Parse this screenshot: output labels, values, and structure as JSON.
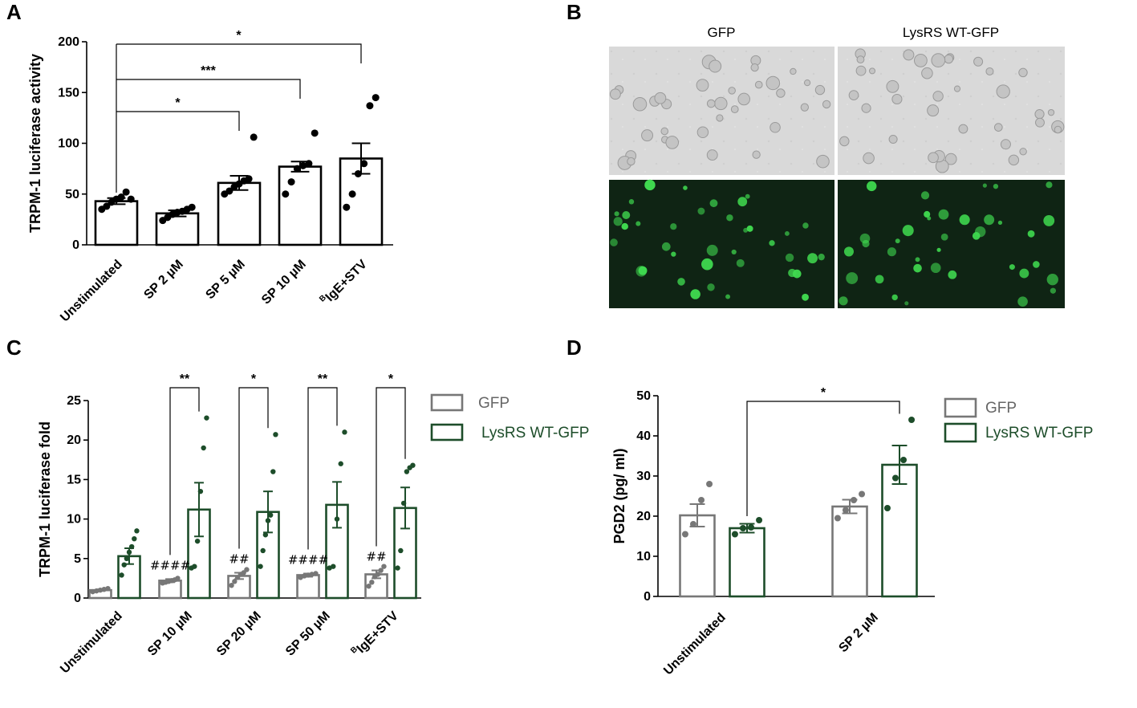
{
  "panels": {
    "A": "A",
    "B": "B",
    "C": "C",
    "D": "D"
  },
  "micrograph": {
    "col_labels": [
      "GFP",
      "LysRS WT-GFP"
    ]
  },
  "chart_data": [
    {
      "panel": "A",
      "type": "bar",
      "ylabel": "TRPM-1 luciferase activity",
      "ylim": [
        0,
        200
      ],
      "yticks": [
        0,
        50,
        100,
        150,
        200
      ],
      "categories": [
        "Unstimulated",
        "SP 2 µM",
        "SP 5 µM",
        "SP 10 µM",
        "IgE+STV"
      ],
      "category_superscript": [
        "",
        "",
        "",
        "",
        "B"
      ],
      "bar_color": "#000000",
      "values": [
        43,
        31,
        61,
        77,
        85
      ],
      "sem": [
        3,
        3,
        7,
        5,
        15
      ],
      "points": [
        [
          35,
          38,
          42,
          45,
          47,
          52,
          45
        ],
        [
          24,
          27,
          30,
          32,
          33,
          35,
          37
        ],
        [
          50,
          53,
          57,
          60,
          63,
          65,
          106
        ],
        [
          50,
          62,
          75,
          78,
          80,
          110
        ],
        [
          37,
          50,
          70,
          80,
          137,
          145
        ]
      ],
      "significance": [
        {
          "from": 0,
          "to": 2,
          "label": "*"
        },
        {
          "from": 0,
          "to": 3,
          "label": "***"
        },
        {
          "from": 0,
          "to": 4,
          "label": "*"
        }
      ]
    },
    {
      "panel": "C",
      "type": "bar",
      "ylabel": "TRPM-1 luciferase fold",
      "ylim": [
        0,
        25
      ],
      "yticks": [
        0,
        5,
        10,
        15,
        20,
        25
      ],
      "categories": [
        "Unstimulated",
        "SP 10 µM",
        "SP 20 µM",
        "SP 50 µM",
        "IgE+STV"
      ],
      "category_superscript": [
        "",
        "",
        "",
        "",
        "B"
      ],
      "legend": [
        "GFP",
        "LysRS WT-GFP"
      ],
      "colors": [
        "#777777",
        "#1d4d2a"
      ],
      "series": [
        {
          "name": "GFP",
          "values": [
            1.0,
            2.2,
            2.8,
            2.9,
            3.0
          ],
          "sem": [
            0.1,
            0.2,
            0.4,
            0.2,
            0.5
          ],
          "points": [
            [
              0.8,
              0.9,
              1.0,
              1.1,
              1.2
            ],
            [
              1.9,
              2.0,
              2.1,
              2.2,
              2.3,
              2.5
            ],
            [
              1.6,
              2.1,
              2.6,
              3.0,
              3.2,
              3.6
            ],
            [
              2.6,
              2.8,
              2.9,
              3.0,
              3.1
            ],
            [
              1.5,
              2.0,
              2.7,
              3.0,
              3.5,
              4.0
            ]
          ]
        },
        {
          "name": "LysRS WT-GFP",
          "values": [
            5.3,
            11.2,
            10.9,
            11.8,
            11.4
          ],
          "sem": [
            1.0,
            3.4,
            2.6,
            2.9,
            2.6
          ],
          "points": [
            [
              2.9,
              4.2,
              5.0,
              5.8,
              6.5,
              7.5,
              8.5
            ],
            [
              3.8,
              4.0,
              7.2,
              13.5,
              19.0,
              22.8
            ],
            [
              4.0,
              6.0,
              8.0,
              9.8,
              10.5,
              16.0,
              20.7
            ],
            [
              3.8,
              4.0,
              10.0,
              17.0,
              21.0
            ],
            [
              3.8,
              6.0,
              12.0,
              16.0,
              16.5,
              16.8
            ]
          ]
        }
      ],
      "group_marks": [
        "",
        "####",
        "##",
        "####",
        "##"
      ],
      "significance": [
        {
          "group": 1,
          "label": "**"
        },
        {
          "group": 2,
          "label": "*"
        },
        {
          "group": 3,
          "label": "**"
        },
        {
          "group": 4,
          "label": "*"
        }
      ]
    },
    {
      "panel": "D",
      "type": "bar",
      "ylabel": "PGD2 (pg/ ml)",
      "ylim": [
        0,
        50
      ],
      "yticks": [
        0,
        10,
        20,
        30,
        40,
        50
      ],
      "categories": [
        "Unstimulated",
        "SP 2 µM"
      ],
      "legend": [
        "GFP",
        "LysRS WT-GFP"
      ],
      "colors": [
        "#777777",
        "#1d4d2a"
      ],
      "series": [
        {
          "name": "GFP",
          "values": [
            20.2,
            22.4
          ],
          "sem": [
            2.8,
            1.7
          ],
          "points": [
            [
              15.5,
              18.0,
              24.0,
              28.0
            ],
            [
              19.5,
              21.5,
              24.0,
              25.5
            ]
          ]
        },
        {
          "name": "LysRS WT-GFP",
          "values": [
            17.0,
            32.8
          ],
          "sem": [
            1.1,
            4.8
          ],
          "points": [
            [
              15.5,
              17.0,
              17.2,
              19.0
            ],
            [
              22.0,
              29.5,
              34.0,
              44.0
            ]
          ]
        }
      ],
      "significance": [
        {
          "from_group": 0,
          "from_series": 1,
          "to_group": 1,
          "to_series": 1,
          "label": "*"
        }
      ]
    }
  ]
}
